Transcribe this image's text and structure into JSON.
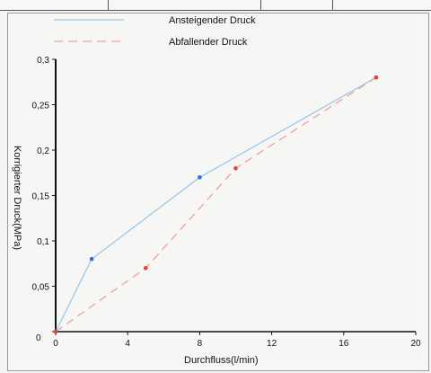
{
  "chart_data": {
    "type": "line",
    "xlabel": "Durchfluss(l/min)",
    "ylabel": "Korrigierter Druck(MPa)",
    "xlim": [
      0,
      20
    ],
    "ylim": [
      0,
      0.3
    ],
    "x_ticks": [
      "0",
      "4",
      "8",
      "12",
      "16",
      "20"
    ],
    "y_ticks": [
      "0",
      "0,05",
      "0,1",
      "0,15",
      "0,2",
      "0,25",
      "0,3"
    ],
    "grid": false,
    "legend_position": "top",
    "series": [
      {
        "name": "Ansteigender Druck",
        "color": "#9cc8ea",
        "marker_color": "#2f6fd6",
        "line_style": "solid",
        "x": [
          0,
          2,
          8,
          17.8
        ],
        "y": [
          0,
          0.08,
          0.17,
          0.28
        ]
      },
      {
        "name": "Abfallender Druck",
        "color": "#f0a0a0",
        "marker_color": "#e0453a",
        "line_style": "dashed",
        "x": [
          0,
          5,
          10,
          17.8
        ],
        "y": [
          0,
          0.07,
          0.18,
          0.28
        ]
      }
    ]
  }
}
